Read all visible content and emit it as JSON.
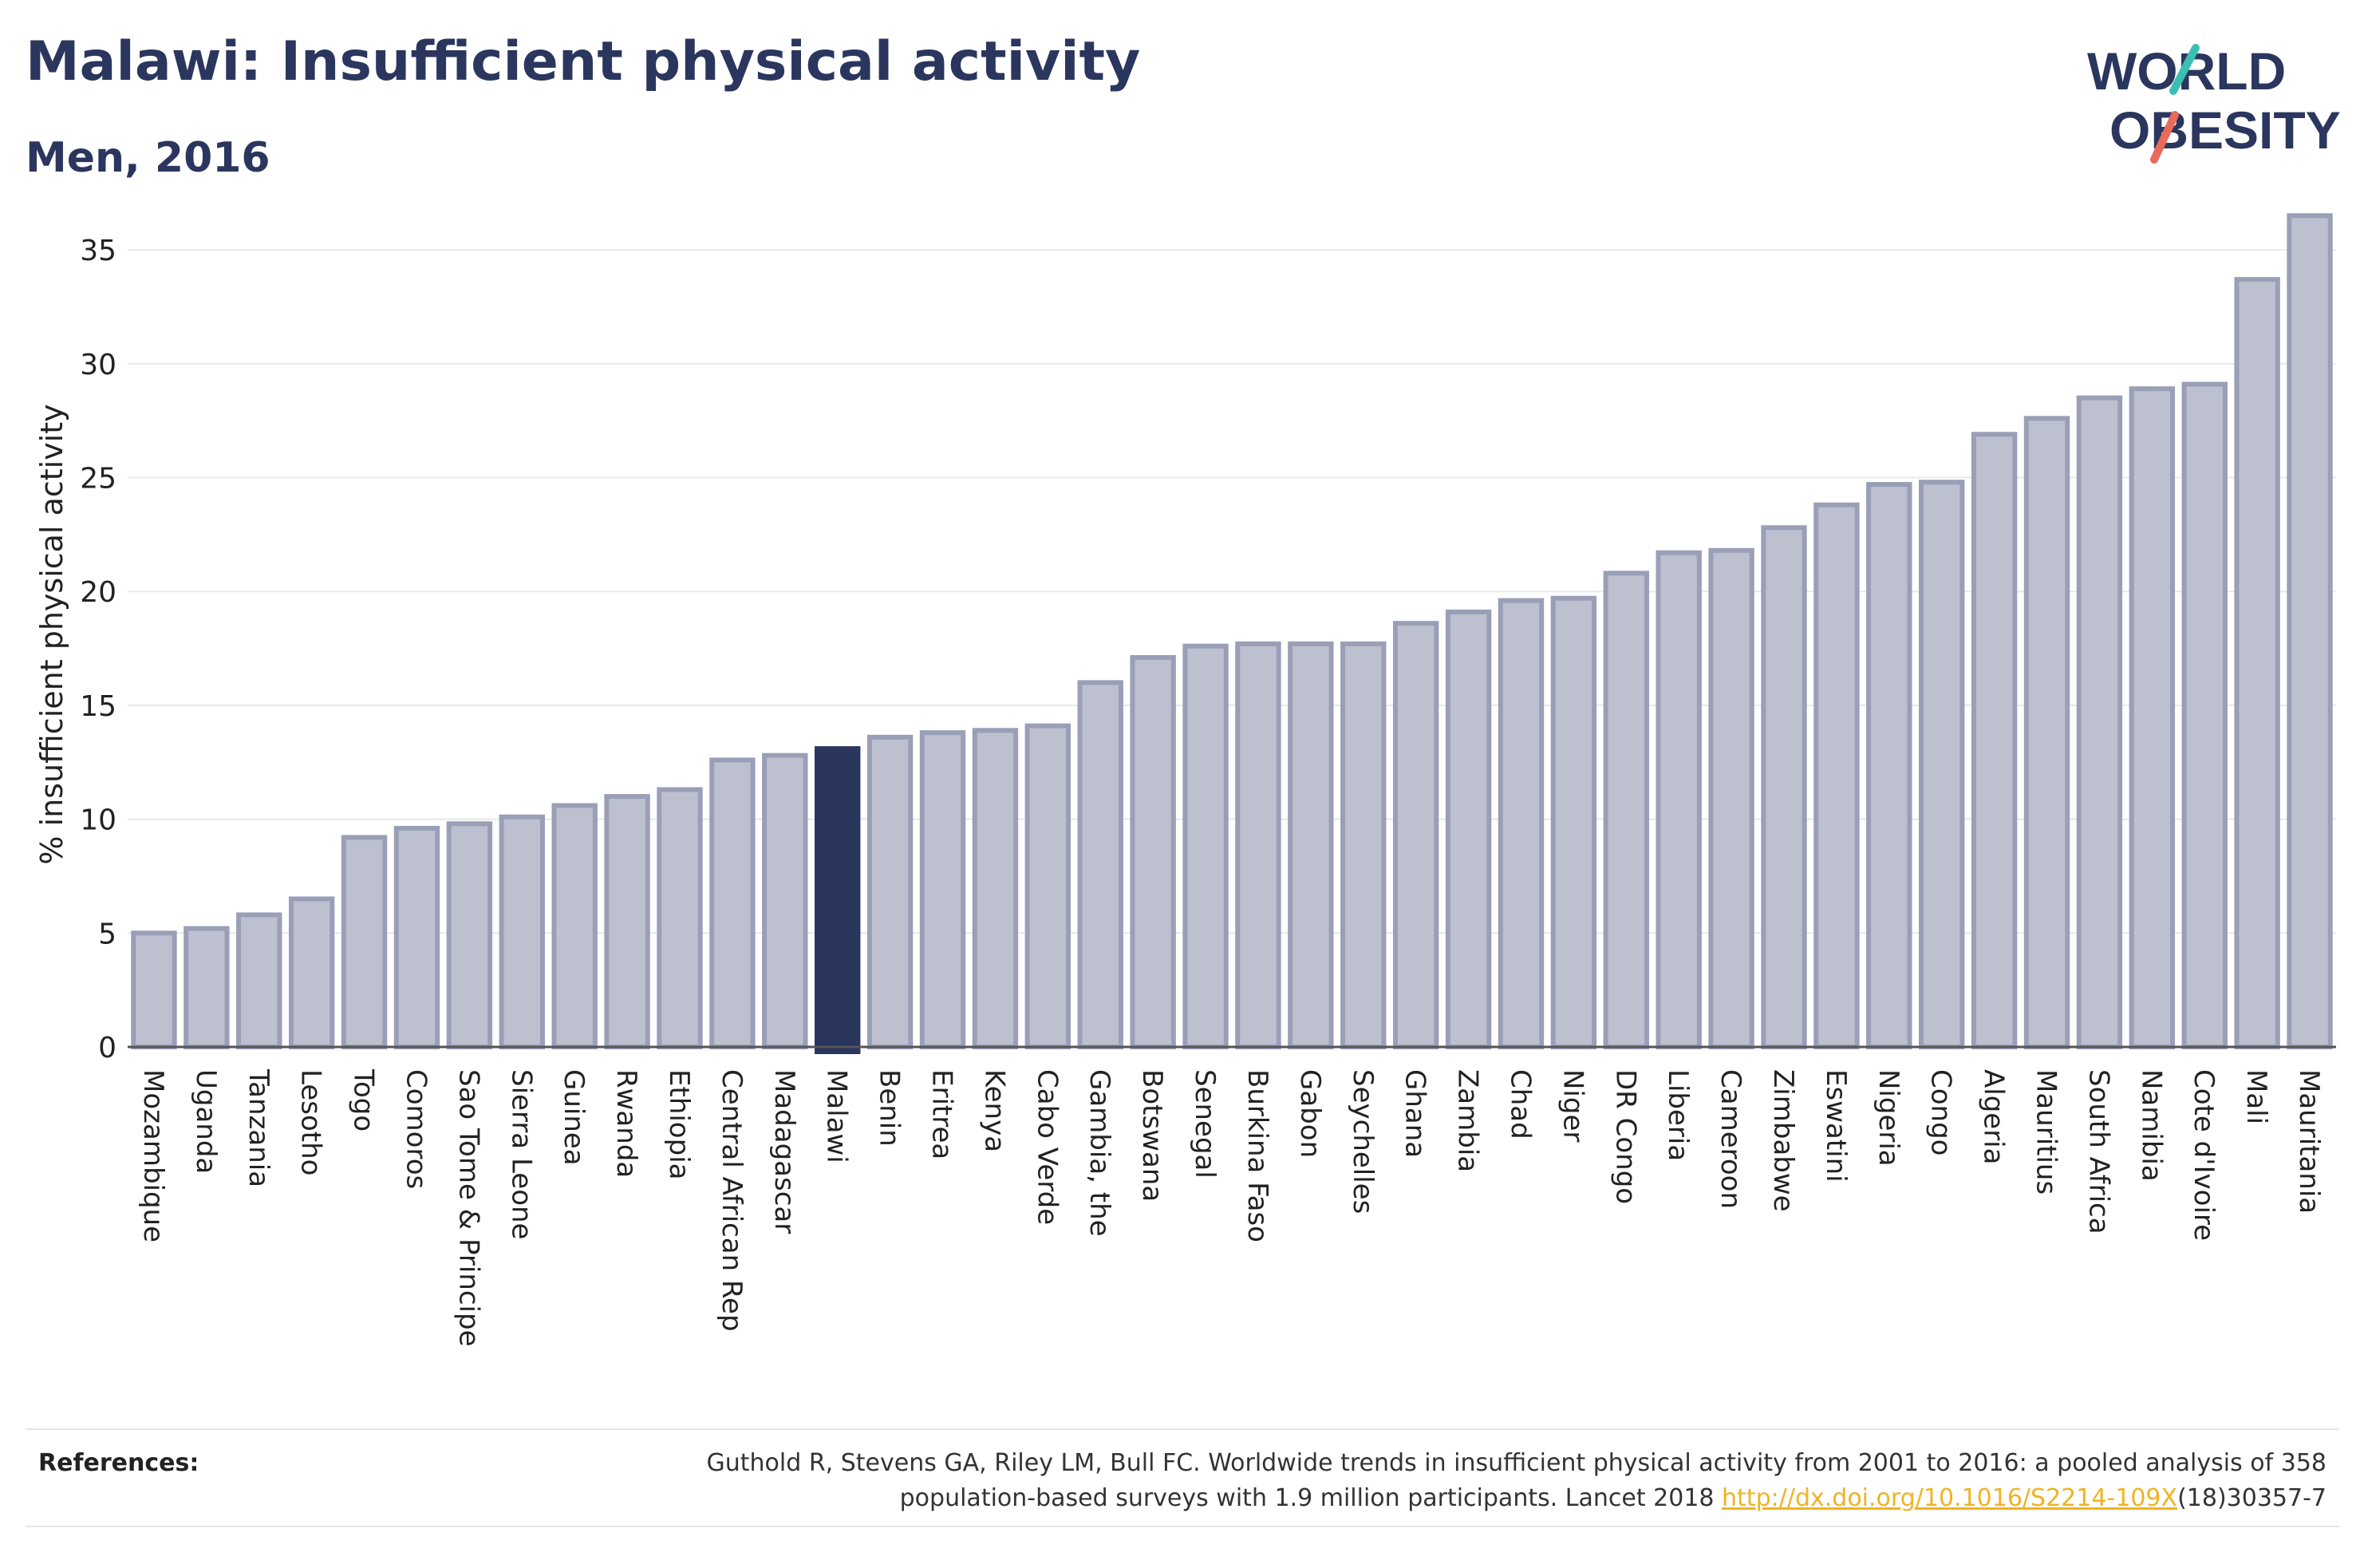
{
  "header": {
    "title": "Malawi: Insufficient physical activity",
    "subtitle": "Men, 2016"
  },
  "logo": {
    "line1": "WORLD",
    "line2": "OBESITY"
  },
  "colors": {
    "bar_fill": "#bcc0cf",
    "bar_stroke": "#9a9fb8",
    "highlight": "#2b365e",
    "text": "#2b365e",
    "grid": "#e8e8e8",
    "logo_teal": "#3bbfb5",
    "logo_coral": "#e86a5c",
    "link": "#f0b323"
  },
  "chart_data": {
    "type": "bar",
    "ylabel": "% insufficient physical activity",
    "ylim": [
      0,
      37
    ],
    "yticks": [
      "0",
      "5",
      "10",
      "15",
      "20",
      "25",
      "30",
      "35"
    ],
    "grid": "horizontal",
    "highlight": "Malawi",
    "categories": [
      "Mozambique",
      "Uganda",
      "Tanzania",
      "Lesotho",
      "Togo",
      "Comoros",
      "Sao Tome & Principe",
      "Sierra Leone",
      "Guinea",
      "Rwanda",
      "Ethiopia",
      "Central African Rep",
      "Madagascar",
      "Malawi",
      "Benin",
      "Eritrea",
      "Kenya",
      "Cabo Verde",
      "Gambia, the",
      "Botswana",
      "Senegal",
      "Burkina Faso",
      "Gabon",
      "Seychelles",
      "Ghana",
      "Zambia",
      "Chad",
      "Niger",
      "DR Congo",
      "Liberia",
      "Cameroon",
      "Zimbabwe",
      "Eswatini",
      "Nigeria",
      "Congo",
      "Algeria",
      "Mauritius",
      "South Africa",
      "Namibia",
      "Cote d'Ivoire",
      "Mali",
      "Mauritania"
    ],
    "values": [
      5.0,
      5.2,
      5.8,
      6.5,
      9.2,
      9.6,
      9.8,
      10.1,
      10.6,
      11.0,
      11.3,
      12.6,
      12.8,
      13.1,
      13.6,
      13.8,
      13.9,
      14.1,
      16.0,
      17.1,
      17.6,
      17.7,
      17.7,
      17.7,
      18.6,
      19.1,
      19.6,
      19.7,
      20.8,
      21.7,
      21.8,
      22.8,
      23.8,
      24.7,
      24.8,
      26.9,
      27.6,
      28.5,
      28.9,
      29.1,
      33.7,
      36.5
    ]
  },
  "references": {
    "label": "References:",
    "line1": "Guthold R, Stevens GA, Riley LM, Bull FC. Worldwide trends in insufficient physical activity from 2001 to 2016: a pooled analysis of 358",
    "line2_prefix": "population-based surveys with 1.9 million participants. Lancet 2018 ",
    "link_text": "http://dx.doi.org/10.1016/S2214-109X",
    "line2_suffix": "(18)30357-7"
  }
}
